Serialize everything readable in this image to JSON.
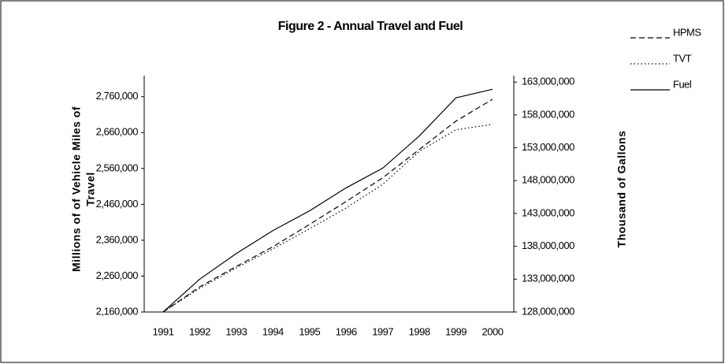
{
  "chart_data": {
    "type": "line",
    "title": "Figure 2 - Annual Travel and Fuel",
    "y_label": [
      "Millions of of Vehicle Miles of",
      "Travel"
    ],
    "y2_label": "Thousand of Gallons",
    "categories": [
      "1991",
      "1992",
      "1993",
      "1994",
      "1995",
      "1996",
      "1997",
      "1998",
      "1999",
      "2000"
    ],
    "series": [
      {
        "name": "HPMS",
        "color": "#000000",
        "dash": "dashed",
        "values": [
          2160000,
          2230000,
          2287000,
          2342000,
          2404000,
          2468000,
          2534000,
          2613000,
          2692000,
          2753000
        ]
      },
      {
        "name": "TVT",
        "color": "#000000",
        "dash": "dotted",
        "values": [
          2160000,
          2226000,
          2283000,
          2336000,
          2392000,
          2450000,
          2516000,
          2608000,
          2668000,
          2683000
        ]
      },
      {
        "name": "Fuel",
        "color": "#000000",
        "dash": "solid",
        "axis": "y2",
        "values": [
          128000000,
          133000000,
          136900000,
          140400000,
          143400000,
          146900000,
          149900000,
          154800000,
          160600000,
          161900000
        ]
      }
    ],
    "ylim": [
      2160000,
      2810000
    ],
    "yticks": [
      {
        "value": 2160000,
        "label": "2,160,000"
      },
      {
        "value": 2260000,
        "label": "2,260,000"
      },
      {
        "value": 2360000,
        "label": "2,360,000"
      },
      {
        "value": 2460000,
        "label": "2,460,000"
      },
      {
        "value": 2560000,
        "label": "2,560,000"
      },
      {
        "value": 2660000,
        "label": "2,660,000"
      },
      {
        "value": 2760000,
        "label": "2,760,000"
      }
    ],
    "y2lim": [
      128000000,
      163500000
    ],
    "y2ticks": [
      {
        "value": 128000000,
        "label": "128,000,000"
      },
      {
        "value": 133000000,
        "label": "133,000,000"
      },
      {
        "value": 138000000,
        "label": "138,000,000"
      },
      {
        "value": 143000000,
        "label": "143,000,000"
      },
      {
        "value": 148000000,
        "label": "148,000,000"
      },
      {
        "value": 153000000,
        "label": "153,000,000"
      },
      {
        "value": 158000000,
        "label": "158,000,000"
      },
      {
        "value": 163000000,
        "label": "163,000,000"
      }
    ],
    "grid": false,
    "legend": "top-right"
  }
}
